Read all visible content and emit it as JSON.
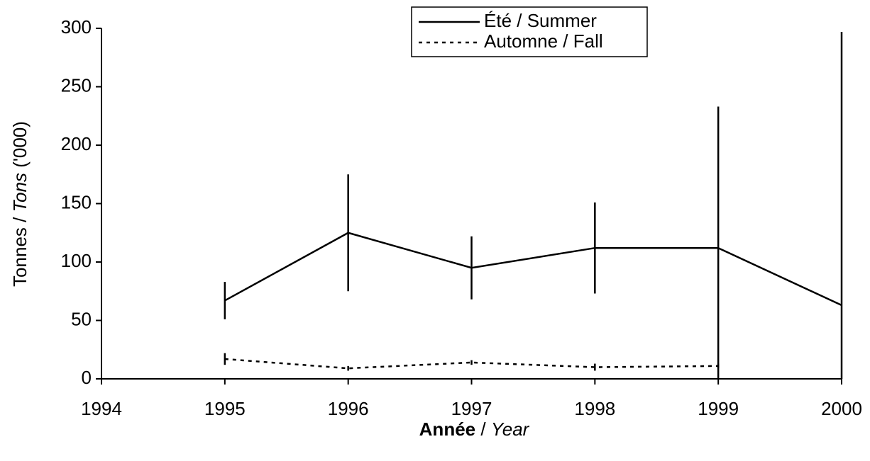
{
  "chart_data": {
    "type": "line",
    "xlabel": [
      "Année",
      "/",
      "Year"
    ],
    "ylabel": [
      "Tonnes",
      "/",
      "Tons",
      "('000)"
    ],
    "x": [
      1995,
      1996,
      1997,
      1998,
      1999,
      2000
    ],
    "series": [
      {
        "name": "Été / Summer",
        "color": "#000000",
        "dash": "solid",
        "values": [
          67,
          125,
          95,
          112,
          112,
          63
        ],
        "errors": [
          16,
          50,
          27,
          39,
          121,
          234
        ]
      },
      {
        "name": "Automne / Fall",
        "color": "#000000",
        "dash": "dotted",
        "values": [
          17,
          9,
          14,
          10,
          11,
          null
        ],
        "errors": [
          5,
          2,
          2,
          3,
          2,
          null
        ]
      }
    ],
    "xlim": [
      1994,
      2000
    ],
    "xticks": [
      1994,
      1995,
      1996,
      1997,
      1998,
      1999,
      2000
    ],
    "ylim": [
      0,
      300
    ],
    "yticks": [
      0,
      50,
      100,
      150,
      200,
      250,
      300
    ],
    "grid": false,
    "legend": "top-center"
  }
}
